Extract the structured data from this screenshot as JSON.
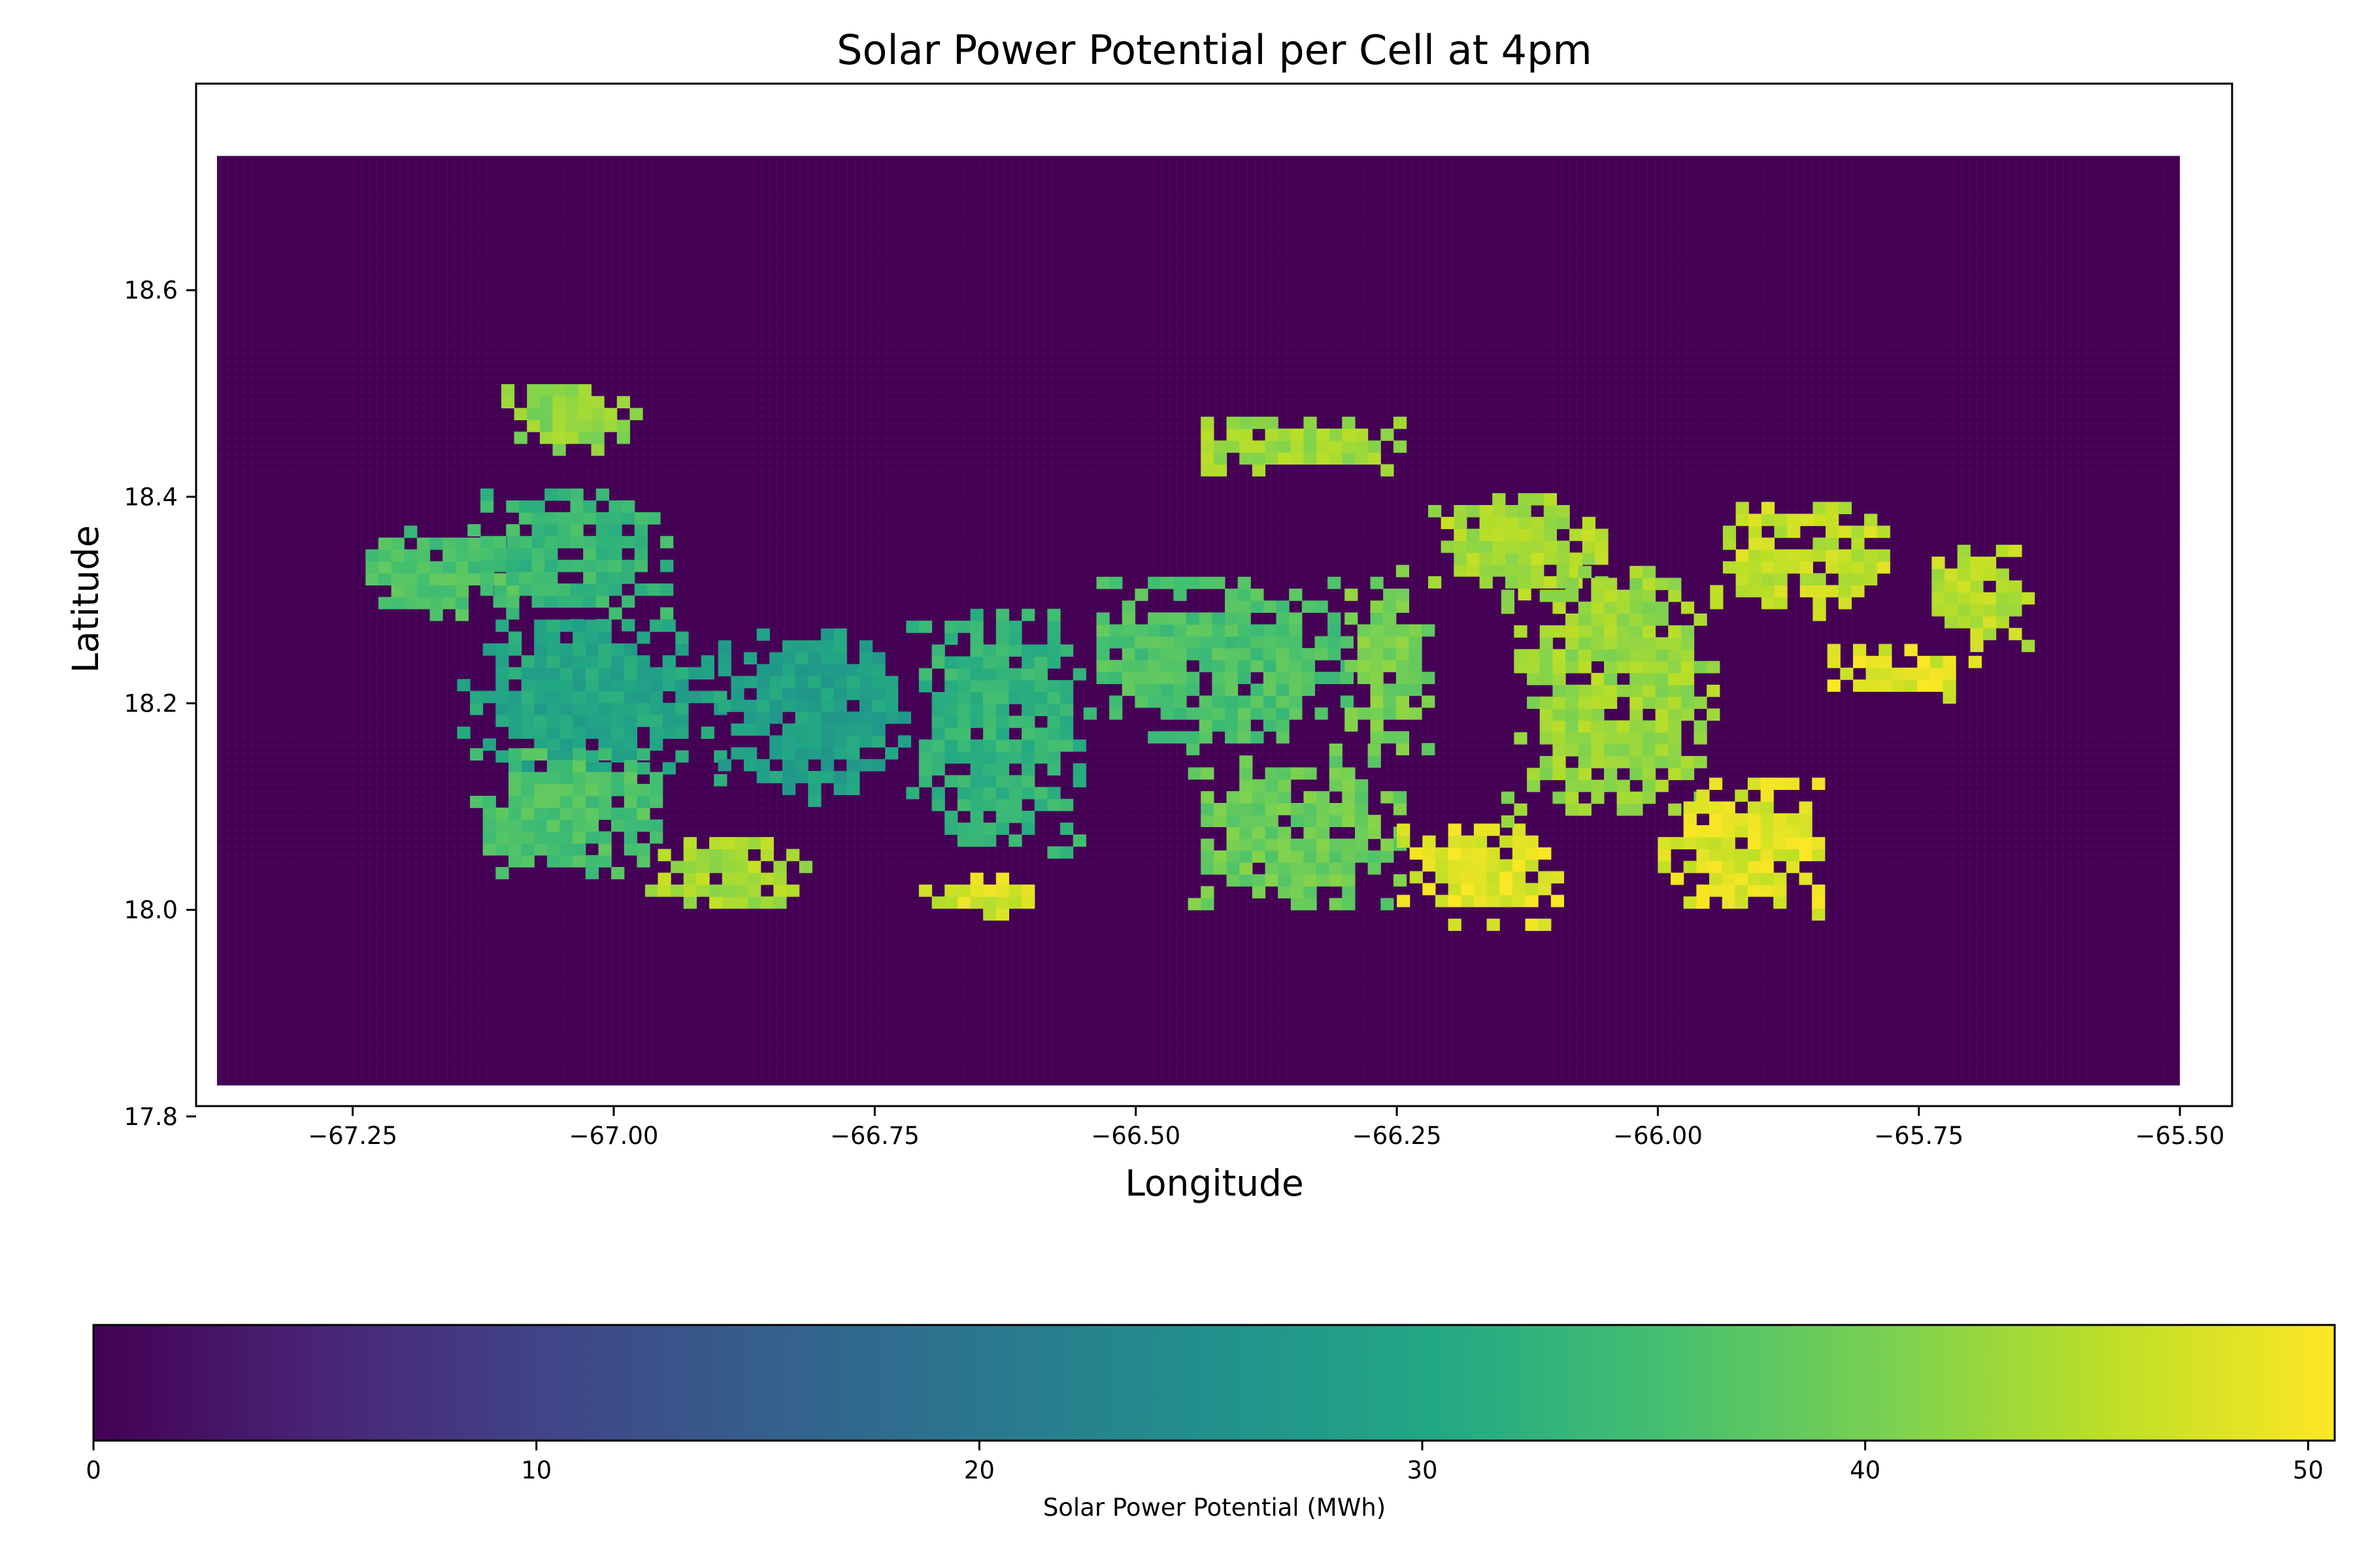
{
  "chart_data": [
    {
      "type": "heatmap",
      "title": "Solar Power Potential per Cell at 4pm",
      "xlabel": "Longitude",
      "ylabel": "Latitude",
      "xlim": [
        -67.4,
        -65.45
      ],
      "ylim": [
        17.81,
        18.8
      ],
      "xticks": [
        {
          "value": -67.25,
          "label": "−67.25"
        },
        {
          "value": -67.0,
          "label": "−67.00"
        },
        {
          "value": -66.75,
          "label": "−66.75"
        },
        {
          "value": -66.5,
          "label": "−66.50"
        },
        {
          "value": -66.25,
          "label": "−66.25"
        },
        {
          "value": -66.0,
          "label": "−66.00"
        },
        {
          "value": -65.75,
          "label": "−65.75"
        },
        {
          "value": -65.5,
          "label": "−65.50"
        }
      ],
      "yticks": [
        {
          "value": 17.8,
          "label": "17.8"
        },
        {
          "value": 18.0,
          "label": "18.0"
        },
        {
          "value": 18.2,
          "label": "18.2"
        },
        {
          "value": 18.4,
          "label": "18.4"
        },
        {
          "value": 18.6,
          "label": "18.6"
        }
      ],
      "grid_extent": {
        "lon": [
          -67.38,
          -65.5
        ],
        "lat": [
          17.83,
          18.73
        ]
      },
      "colormap": "viridis",
      "background_value": 0,
      "land_regions": [
        {
          "region": "west",
          "lon": [
            -67.25,
            -67.1
          ],
          "lat": [
            18.28,
            18.37
          ],
          "value": 36
        },
        {
          "region": "northwest-upper",
          "lon": [
            -67.14,
            -66.95
          ],
          "lat": [
            18.27,
            18.4
          ],
          "value": 34
        },
        {
          "region": "northwest-fringe",
          "lon": [
            -67.12,
            -66.98
          ],
          "lat": [
            18.44,
            18.5
          ],
          "value": 42
        },
        {
          "region": "west-central",
          "lon": [
            -67.15,
            -66.9
          ],
          "lat": [
            18.12,
            18.28
          ],
          "value": 30
        },
        {
          "region": "central-west",
          "lon": [
            -66.9,
            -66.72
          ],
          "lat": [
            18.1,
            18.27
          ],
          "value": 29
        },
        {
          "region": "southwest",
          "lon": [
            -67.15,
            -66.95
          ],
          "lat": [
            18.03,
            18.15
          ],
          "value": 36
        },
        {
          "region": "south-west-coast",
          "lon": [
            -66.97,
            -66.82
          ],
          "lat": [
            17.99,
            18.07
          ],
          "value": 44
        },
        {
          "region": "central",
          "lon": [
            -66.72,
            -66.55
          ],
          "lat": [
            18.05,
            18.29
          ],
          "value": 33
        },
        {
          "region": "south-central",
          "lon": [
            -66.72,
            -66.6
          ],
          "lat": [
            17.99,
            18.03
          ],
          "value": 47
        },
        {
          "region": "central-east",
          "lon": [
            -66.55,
            -66.3
          ],
          "lat": [
            18.15,
            18.32
          ],
          "value": 36
        },
        {
          "region": "east-central",
          "lon": [
            -66.3,
            -66.22
          ],
          "lat": [
            18.15,
            18.33
          ],
          "value": 40
        },
        {
          "region": "north-central",
          "lon": [
            -66.45,
            -66.25
          ],
          "lat": [
            18.42,
            18.47
          ],
          "value": 43
        },
        {
          "region": "south-east-central",
          "lon": [
            -66.45,
            -66.25
          ],
          "lat": [
            18.0,
            18.15
          ],
          "value": 39
        },
        {
          "region": "south",
          "lon": [
            -66.25,
            -66.1
          ],
          "lat": [
            17.98,
            18.08
          ],
          "value": 48
        },
        {
          "region": "northeast-inner",
          "lon": [
            -66.22,
            -66.05
          ],
          "lat": [
            18.3,
            18.4
          ],
          "value": 44
        },
        {
          "region": "east",
          "lon": [
            -66.15,
            -65.95
          ],
          "lat": [
            18.08,
            18.33
          ],
          "value": 43
        },
        {
          "region": "southeast",
          "lon": [
            -66.0,
            -65.85
          ],
          "lat": [
            17.99,
            18.12
          ],
          "value": 48
        },
        {
          "region": "northeast",
          "lon": [
            -65.95,
            -65.78
          ],
          "lat": [
            18.28,
            18.39
          ],
          "value": 46
        },
        {
          "region": "east-coast",
          "lon": [
            -65.85,
            -65.7
          ],
          "lat": [
            18.2,
            18.25
          ],
          "value": 48
        },
        {
          "region": "far-east",
          "lon": [
            -65.75,
            -65.65
          ],
          "lat": [
            18.25,
            18.35
          ],
          "value": 45
        }
      ]
    },
    {
      "type": "colorbar",
      "label": "Solar Power Potential (MWh)",
      "range": [
        0,
        50.6
      ],
      "colormap": "viridis",
      "ticks": [
        {
          "value": 0,
          "label": "0"
        },
        {
          "value": 10,
          "label": "10"
        },
        {
          "value": 20,
          "label": "20"
        },
        {
          "value": 30,
          "label": "30"
        },
        {
          "value": 40,
          "label": "40"
        },
        {
          "value": 50,
          "label": "50"
        }
      ]
    }
  ]
}
